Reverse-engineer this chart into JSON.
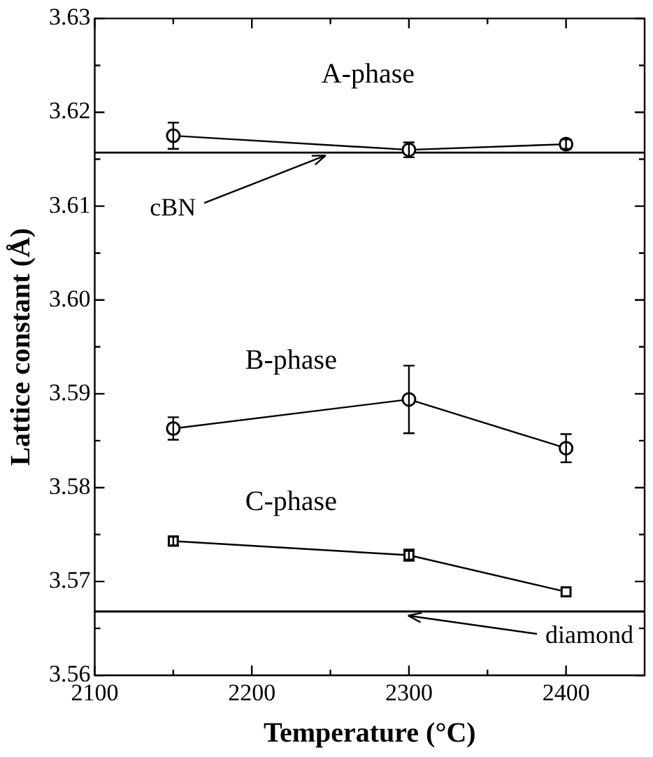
{
  "chart_data": {
    "type": "line",
    "xlabel": "Temperature (°C)",
    "ylabel": "Lattice constant (Å)",
    "x": [
      2150,
      2300,
      2400
    ],
    "series": [
      {
        "name": "A-phase",
        "color": "#000000",
        "marker": "circle",
        "values": [
          3.6175,
          3.616,
          3.6166
        ],
        "errors": [
          0.0014,
          0.0008,
          0.0005
        ]
      },
      {
        "name": "B-phase",
        "color": "#000000",
        "marker": "circle",
        "values": [
          3.5863,
          3.5894,
          3.5842
        ],
        "errors": [
          0.0012,
          0.0036,
          0.0015
        ]
      },
      {
        "name": "C-phase",
        "color": "#000000",
        "marker": "square",
        "values": [
          3.5743,
          3.5728,
          3.5689
        ],
        "errors": [
          0.0005,
          0.0006,
          null
        ]
      }
    ],
    "xlim": [
      2100,
      2450
    ],
    "xticks": [
      2100,
      {
        "value": 2150,
        "label": null
      },
      2200,
      {
        "value": 2250,
        "label": null
      },
      2300,
      {
        "value": 2350,
        "label": null
      },
      2400
    ],
    "ylim": [
      3.56,
      3.63
    ],
    "yticks": [
      3.56,
      {
        "value": 3.565,
        "label": null
      },
      3.57,
      {
        "value": 3.575,
        "label": null
      },
      3.58,
      {
        "value": 3.585,
        "label": null
      },
      3.59,
      {
        "value": 3.595,
        "label": null
      },
      "3.60",
      {
        "value": 3.605,
        "label": null
      },
      3.61,
      {
        "value": 3.615,
        "label": null
      },
      3.62,
      {
        "value": 3.625,
        "label": null
      },
      3.63
    ],
    "ref_lines": [
      {
        "axis": "y",
        "value": 3.6157,
        "label": "cBN",
        "color": "#000000"
      },
      {
        "axis": "y",
        "value": 3.5668,
        "label": "diamond",
        "color": "#000000"
      }
    ],
    "grid": false,
    "legend": "top right"
  }
}
